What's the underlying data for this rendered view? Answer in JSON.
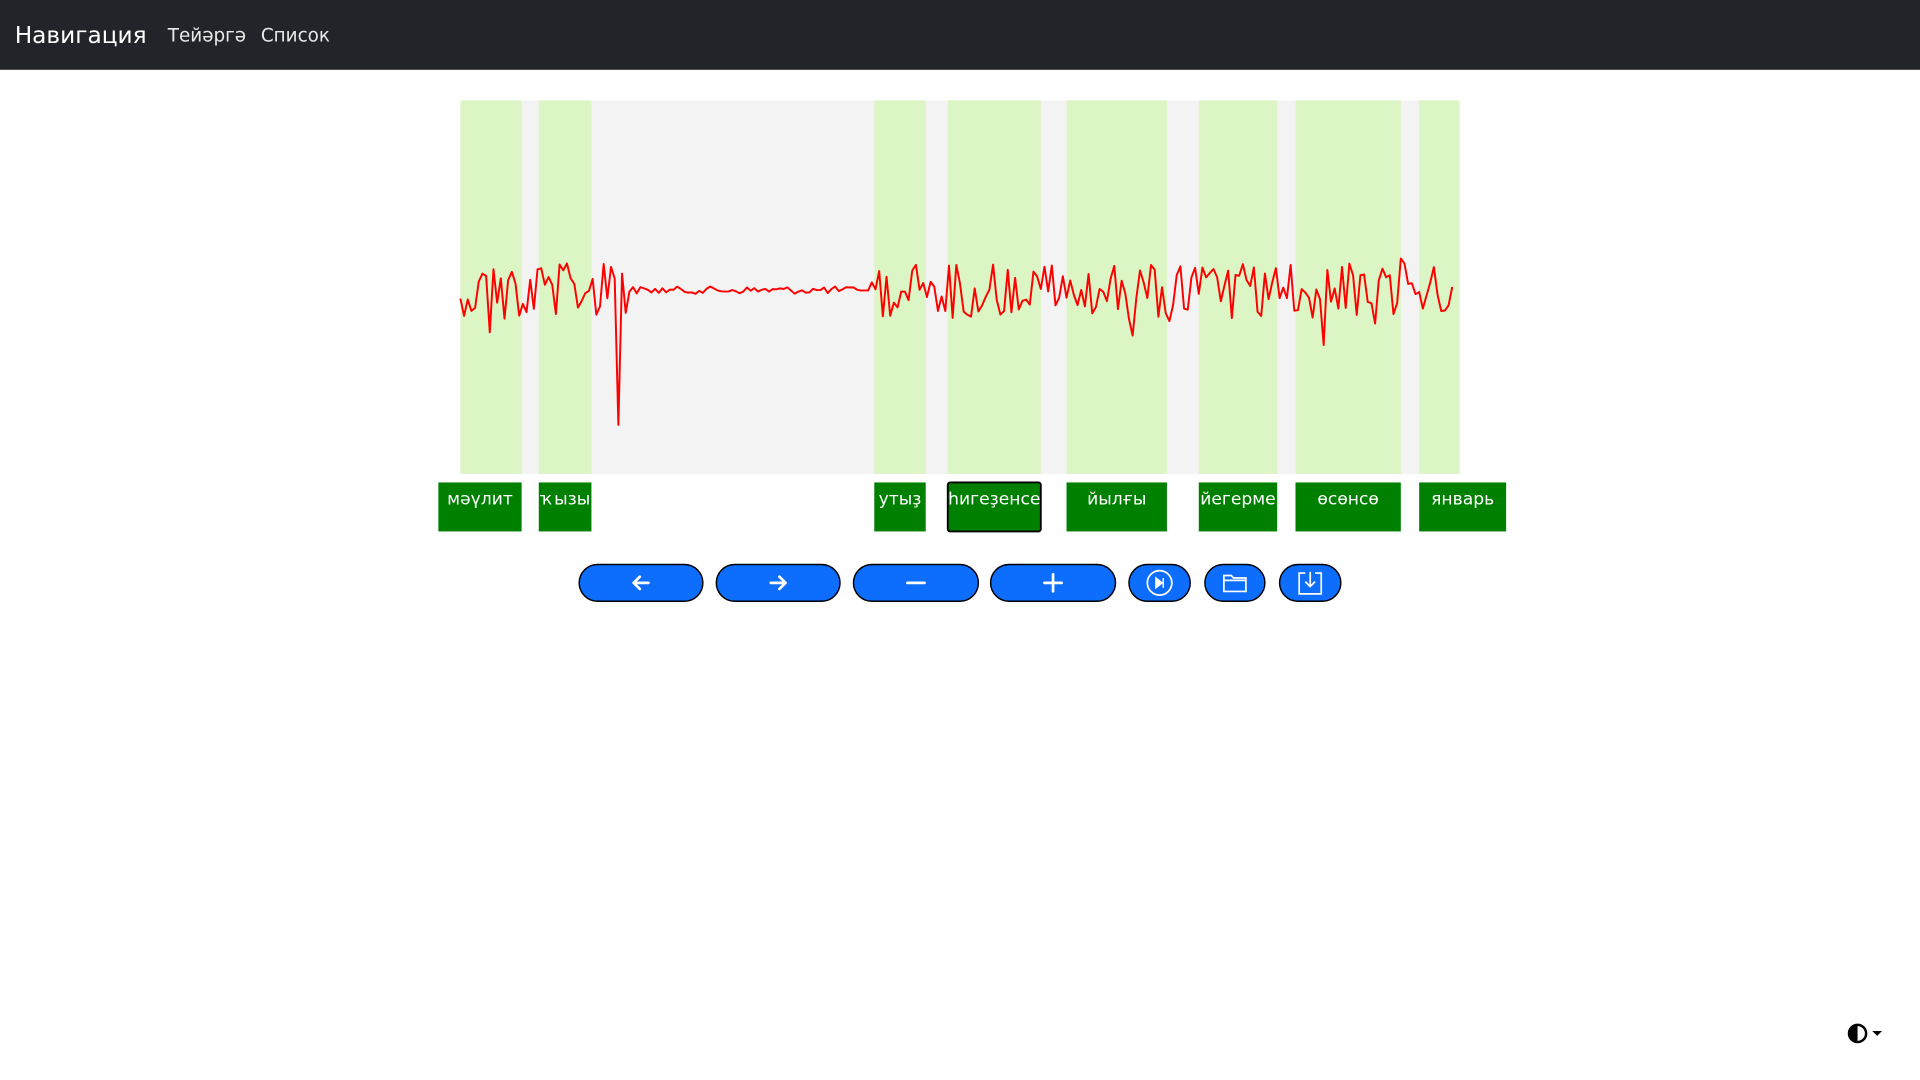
{
  "navbar": {
    "brand": "Навигация",
    "links": [
      "Тейәргә",
      "Список"
    ]
  },
  "words": [
    "мәүлит",
    "ҡызы",
    "утыҙ",
    "һигеҙенсе",
    "йылғы",
    "йегерме",
    "өсөнсө",
    "январь"
  ]
}
